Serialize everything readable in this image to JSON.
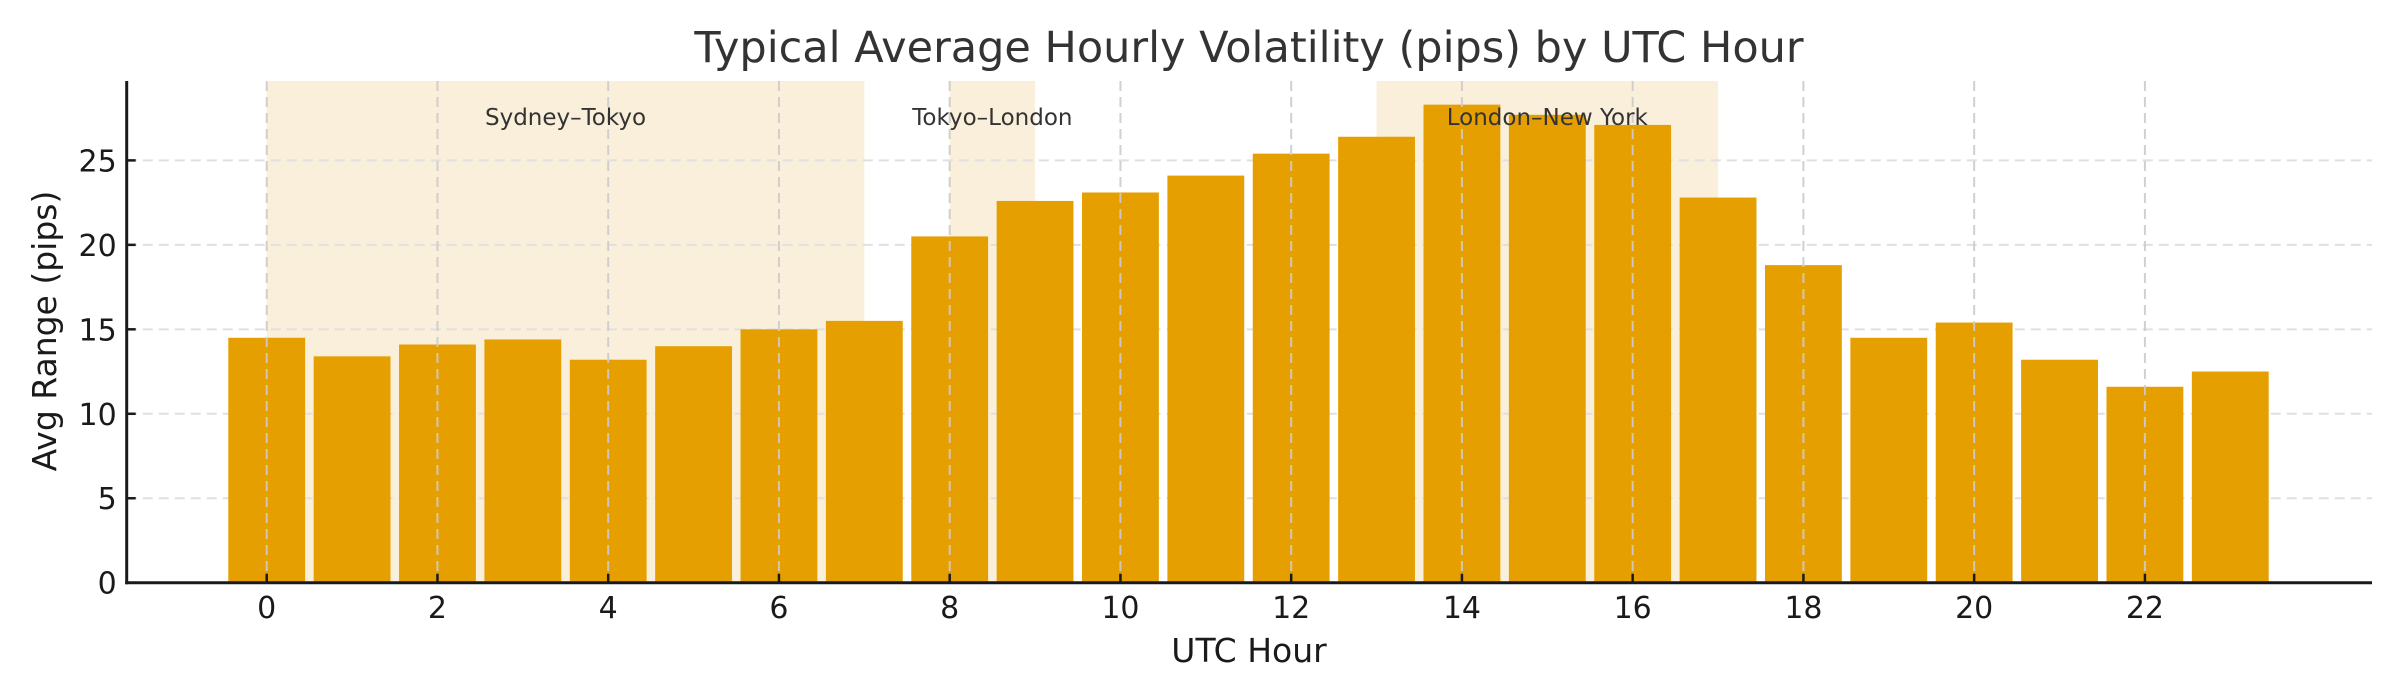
{
  "chart_data": {
    "type": "bar",
    "title": "Typical Average Hourly Volatility (pips) by UTC Hour",
    "xlabel": "UTC Hour",
    "ylabel": "Avg Range (pips)",
    "categories": [
      0,
      1,
      2,
      3,
      4,
      5,
      6,
      7,
      8,
      9,
      10,
      11,
      12,
      13,
      14,
      15,
      16,
      17,
      18,
      19,
      20,
      21,
      22,
      23
    ],
    "values": [
      14.5,
      13.4,
      14.1,
      14.4,
      13.2,
      14.0,
      15.0,
      15.5,
      20.5,
      22.6,
      23.1,
      24.1,
      25.4,
      26.4,
      28.3,
      27.7,
      27.1,
      22.8,
      18.8,
      14.5,
      15.4,
      13.2,
      11.6,
      12.5
    ],
    "xlim": [
      -1.64,
      24.66
    ],
    "ylim": [
      0,
      29.7
    ],
    "xticks": [
      0,
      2,
      4,
      6,
      8,
      10,
      12,
      14,
      16,
      18,
      20,
      22
    ],
    "yticks": [
      0,
      5,
      10,
      15,
      20,
      25
    ],
    "grid": true,
    "legend": null,
    "bar_color": "#E69F00",
    "annotations": [
      {
        "label": "Sydney–Tokyo",
        "start": 0,
        "end": 7,
        "color": "#FAEFDA"
      },
      {
        "label": "Tokyo–London",
        "start": 8,
        "end": 9,
        "color": "#FAEFDA"
      },
      {
        "label": "London–New York",
        "start": 13,
        "end": 17,
        "color": "#FAEFDA"
      }
    ]
  },
  "colors": {
    "bar": "#E69F00",
    "shade": "#FAEFDA",
    "grid": "#E0E0E0",
    "vgrid": "#CCCCCC",
    "axis": "#1a1a1a",
    "text": "#333333"
  }
}
